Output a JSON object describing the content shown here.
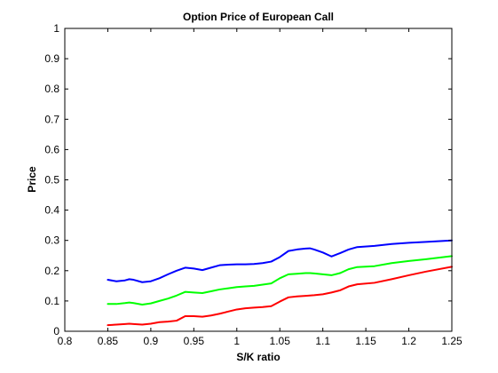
{
  "chart_data": {
    "type": "line",
    "title": "Option Price of European Call",
    "xlabel": "S/K ratio",
    "ylabel": "Price",
    "xlim": [
      0.8,
      1.25
    ],
    "ylim": [
      0,
      1
    ],
    "xticks": [
      "0.8",
      "0.85",
      "0.9",
      "0.95",
      "1",
      "1.05",
      "1.1",
      "1.15",
      "1.2",
      "1.25"
    ],
    "yticks": [
      "0",
      "0.1",
      "0.2",
      "0.3",
      "0.4",
      "0.5",
      "0.6",
      "0.7",
      "0.8",
      "0.9",
      "1"
    ],
    "grid": false,
    "legend": false,
    "x": [
      0.85,
      0.86,
      0.87,
      0.875,
      0.88,
      0.89,
      0.9,
      0.91,
      0.92,
      0.93,
      0.94,
      0.95,
      0.96,
      0.97,
      0.98,
      0.99,
      1.0,
      1.01,
      1.02,
      1.03,
      1.04,
      1.05,
      1.06,
      1.07,
      1.08,
      1.085,
      1.09,
      1.1,
      1.11,
      1.12,
      1.13,
      1.14,
      1.16,
      1.18,
      1.2,
      1.22,
      1.25
    ],
    "series": [
      {
        "color": "#0000ff",
        "values": [
          0.17,
          0.165,
          0.168,
          0.172,
          0.17,
          0.162,
          0.165,
          0.175,
          0.188,
          0.2,
          0.21,
          0.207,
          0.202,
          0.21,
          0.218,
          0.22,
          0.221,
          0.221,
          0.222,
          0.225,
          0.23,
          0.245,
          0.265,
          0.27,
          0.273,
          0.274,
          0.27,
          0.26,
          0.247,
          0.258,
          0.27,
          0.278,
          0.282,
          0.288,
          0.292,
          0.295,
          0.3
        ]
      },
      {
        "color": "#00ff00",
        "values": [
          0.09,
          0.09,
          0.093,
          0.095,
          0.093,
          0.088,
          0.092,
          0.1,
          0.108,
          0.118,
          0.13,
          0.128,
          0.126,
          0.132,
          0.138,
          0.142,
          0.146,
          0.148,
          0.15,
          0.154,
          0.158,
          0.175,
          0.188,
          0.19,
          0.192,
          0.192,
          0.191,
          0.188,
          0.185,
          0.192,
          0.205,
          0.212,
          0.215,
          0.225,
          0.232,
          0.238,
          0.248
        ]
      },
      {
        "color": "#ff0000",
        "values": [
          0.02,
          0.022,
          0.024,
          0.025,
          0.024,
          0.022,
          0.025,
          0.03,
          0.032,
          0.035,
          0.05,
          0.05,
          0.048,
          0.052,
          0.058,
          0.065,
          0.072,
          0.076,
          0.078,
          0.08,
          0.083,
          0.098,
          0.112,
          0.115,
          0.117,
          0.118,
          0.119,
          0.122,
          0.128,
          0.135,
          0.148,
          0.155,
          0.16,
          0.172,
          0.185,
          0.197,
          0.213
        ]
      }
    ]
  }
}
